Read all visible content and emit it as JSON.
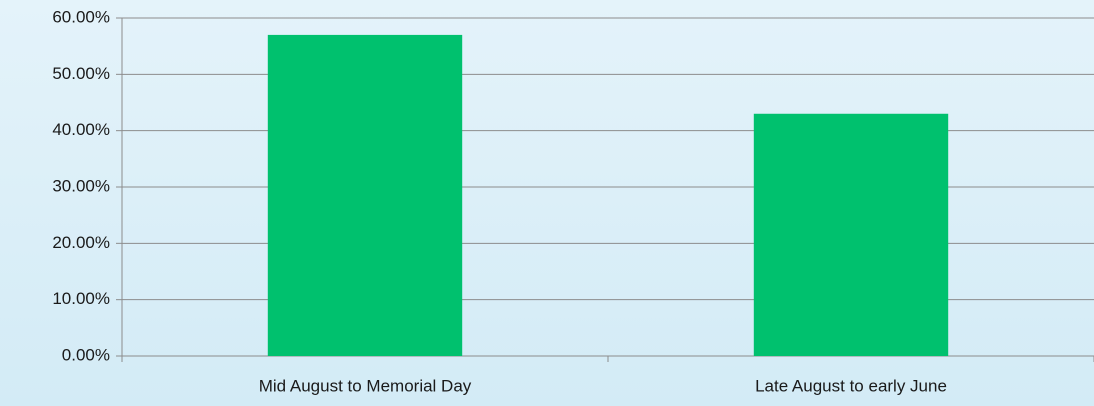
{
  "chart_data": {
    "type": "bar",
    "categories": [
      "Mid August to Memorial Day",
      "Late August to early June"
    ],
    "values": [
      57,
      43
    ],
    "color": "#00c16e",
    "ylim": [
      0,
      60
    ],
    "yticks": [
      {
        "value": 0,
        "label": "0.00%"
      },
      {
        "value": 10,
        "label": "10.00%"
      },
      {
        "value": 20,
        "label": "20.00%"
      },
      {
        "value": 30,
        "label": "30.00%"
      },
      {
        "value": 40,
        "label": "40.00%"
      },
      {
        "value": 50,
        "label": "50.00%"
      },
      {
        "value": 60,
        "label": "60.00%"
      }
    ],
    "grid": true
  }
}
